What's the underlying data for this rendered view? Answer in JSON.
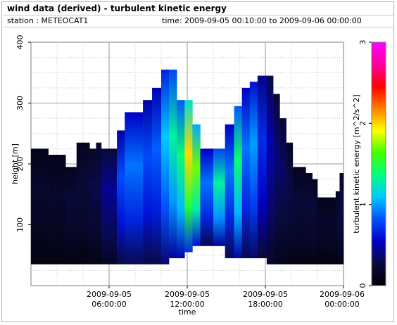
{
  "header": {
    "title": "wind data (derived) - turbulent kinetic energy",
    "station": "station : METEOCAT1",
    "time_range": "time: 2009-09-05 00:10:00 to 2009-09-06 00:00:00"
  },
  "chart_data": {
    "type": "heatmap",
    "xlabel": "time",
    "ylabel": "height [m]",
    "colorbar_label": "turbulent kinetic energy [m^2/s^2]",
    "x_range_hours": [
      0,
      24
    ],
    "ylim": [
      0,
      400
    ],
    "colorbar_range": [
      0,
      3
    ],
    "x_ticks": [
      {
        "hours": 6,
        "line1": "2009-09-05",
        "line2": "06:00:00"
      },
      {
        "hours": 12,
        "line1": "2009-09-05",
        "line2": "12:00:00"
      },
      {
        "hours": 18,
        "line1": "2009-09-05",
        "line2": "18:00:00"
      },
      {
        "hours": 24,
        "line1": "2009-09-06",
        "line2": "00:00:00"
      }
    ],
    "y_ticks": [
      100,
      200,
      300,
      400
    ],
    "colorbar_ticks": [
      0,
      1,
      2,
      3
    ],
    "grid": true,
    "colormap": [
      "#000000",
      "#0a0a3c",
      "#0000c8",
      "#0050ff",
      "#00c8ff",
      "#00ff80",
      "#40ff00",
      "#ffff00",
      "#ff8000",
      "#ff0000",
      "#ff00a0",
      "#ff00ff"
    ],
    "columns": [
      {
        "t0": 0.0,
        "t1": 1.33,
        "bottom": 35,
        "top": 225,
        "tke": 0.2
      },
      {
        "t0": 1.33,
        "t1": 2.66,
        "bottom": 35,
        "top": 215,
        "tke": 0.2
      },
      {
        "t0": 2.66,
        "t1": 3.5,
        "bottom": 35,
        "top": 195,
        "tke": 0.25
      },
      {
        "t0": 3.5,
        "t1": 4.5,
        "bottom": 35,
        "top": 235,
        "tke": 0.25
      },
      {
        "t0": 4.5,
        "t1": 5.0,
        "bottom": 35,
        "top": 225,
        "tke": 0.3
      },
      {
        "t0": 5.0,
        "t1": 5.4,
        "bottom": 35,
        "top": 235,
        "tke": 0.3
      },
      {
        "t0": 5.4,
        "t1": 6.6,
        "bottom": 35,
        "top": 225,
        "tke": 0.45
      },
      {
        "t0": 6.6,
        "t1": 7.2,
        "bottom": 35,
        "top": 255,
        "tke": 0.8
      },
      {
        "t0": 7.2,
        "t1": 7.8,
        "bottom": 35,
        "top": 285,
        "tke": 0.9
      },
      {
        "t0": 7.8,
        "t1": 8.6,
        "bottom": 35,
        "top": 285,
        "tke": 0.9
      },
      {
        "t0": 8.6,
        "t1": 9.3,
        "bottom": 35,
        "top": 305,
        "tke": 0.8
      },
      {
        "t0": 9.3,
        "t1": 10.0,
        "bottom": 35,
        "top": 325,
        "tke": 0.85
      },
      {
        "t0": 10.0,
        "t1": 10.6,
        "bottom": 35,
        "top": 355,
        "tke": 1.1
      },
      {
        "t0": 10.6,
        "t1": 11.2,
        "bottom": 45,
        "top": 355,
        "tke": 1.3
      },
      {
        "t0": 11.2,
        "t1": 11.8,
        "bottom": 45,
        "top": 305,
        "tke": 1.4
      },
      {
        "t0": 11.8,
        "t1": 12.4,
        "bottom": 55,
        "top": 305,
        "tke": 2.0
      },
      {
        "t0": 12.4,
        "t1": 13.0,
        "bottom": 65,
        "top": 265,
        "tke": 1.7
      },
      {
        "t0": 13.0,
        "t1": 14.0,
        "bottom": 65,
        "top": 225,
        "tke": 0.9
      },
      {
        "t0": 14.0,
        "t1": 14.9,
        "bottom": 65,
        "top": 225,
        "tke": 1.3
      },
      {
        "t0": 14.9,
        "t1": 15.6,
        "bottom": 45,
        "top": 265,
        "tke": 0.9
      },
      {
        "t0": 15.6,
        "t1": 16.2,
        "bottom": 45,
        "top": 295,
        "tke": 1.4
      },
      {
        "t0": 16.2,
        "t1": 16.8,
        "bottom": 45,
        "top": 325,
        "tke": 0.9
      },
      {
        "t0": 16.8,
        "t1": 17.4,
        "bottom": 45,
        "top": 335,
        "tke": 1.0
      },
      {
        "t0": 17.4,
        "t1": 18.1,
        "bottom": 45,
        "top": 345,
        "tke": 0.7
      },
      {
        "t0": 18.1,
        "t1": 18.6,
        "bottom": 35,
        "top": 345,
        "tke": 0.5
      },
      {
        "t0": 18.6,
        "t1": 19.1,
        "bottom": 35,
        "top": 315,
        "tke": 0.4
      },
      {
        "t0": 19.1,
        "t1": 19.6,
        "bottom": 35,
        "top": 275,
        "tke": 0.35
      },
      {
        "t0": 19.6,
        "t1": 20.1,
        "bottom": 35,
        "top": 235,
        "tke": 0.3
      },
      {
        "t0": 20.1,
        "t1": 21.1,
        "bottom": 35,
        "top": 195,
        "tke": 0.25
      },
      {
        "t0": 21.1,
        "t1": 21.6,
        "bottom": 35,
        "top": 185,
        "tke": 0.25
      },
      {
        "t0": 21.6,
        "t1": 22.0,
        "bottom": 35,
        "top": 175,
        "tke": 0.25
      },
      {
        "t0": 22.0,
        "t1": 22.4,
        "bottom": 35,
        "top": 145,
        "tke": 0.2
      },
      {
        "t0": 22.4,
        "t1": 23.4,
        "bottom": 35,
        "top": 145,
        "tke": 0.2
      },
      {
        "t0": 23.4,
        "t1": 23.7,
        "bottom": 35,
        "top": 155,
        "tke": 0.25
      },
      {
        "t0": 23.7,
        "t1": 24.0,
        "bottom": 35,
        "top": 185,
        "tke": 0.3
      }
    ]
  }
}
